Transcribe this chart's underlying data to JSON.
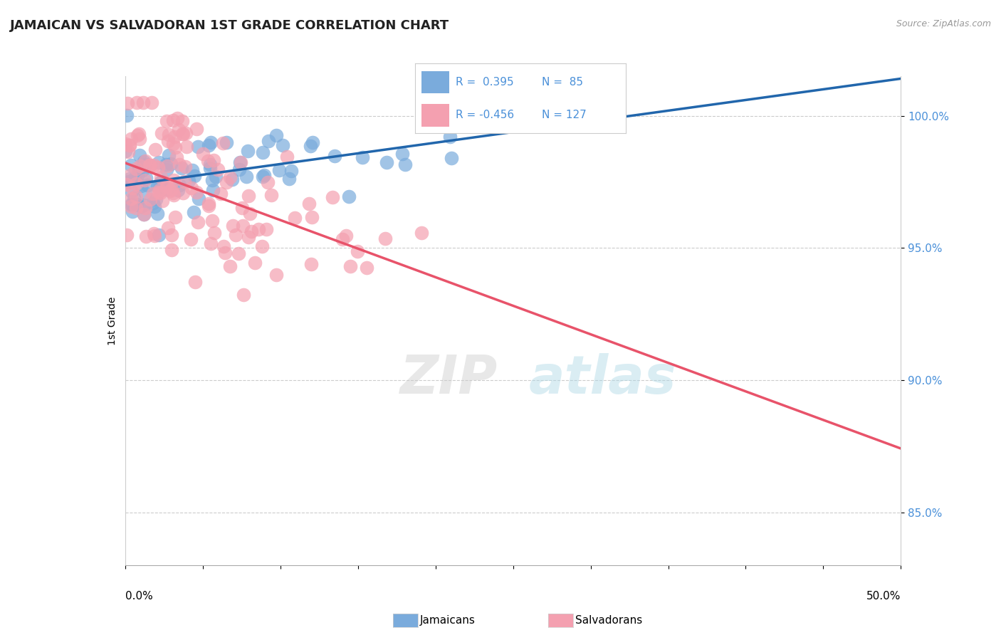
{
  "title": "JAMAICAN VS SALVADORAN 1ST GRADE CORRELATION CHART",
  "source_text": "Source: ZipAtlas.com",
  "ylabel": "1st Grade",
  "xlim": [
    0.0,
    50.0
  ],
  "ylim": [
    83.0,
    101.5
  ],
  "yticks": [
    85.0,
    90.0,
    95.0,
    100.0
  ],
  "ytick_labels": [
    "85.0%",
    "90.0%",
    "95.0%",
    "100.0%"
  ],
  "blue_R": 0.395,
  "blue_N": 85,
  "pink_R": -0.456,
  "pink_N": 127,
  "blue_color": "#7aabdc",
  "blue_line_color": "#2166ac",
  "pink_color": "#f4a0b0",
  "pink_line_color": "#e8536a",
  "legend_R_color": "#4a90d9",
  "title_fontsize": 13,
  "axis_label_fontsize": 10,
  "tick_fontsize": 11,
  "background_color": "#ffffff",
  "grid_color": "#cccccc",
  "blue_scatter_seed": 42,
  "pink_scatter_seed": 7
}
